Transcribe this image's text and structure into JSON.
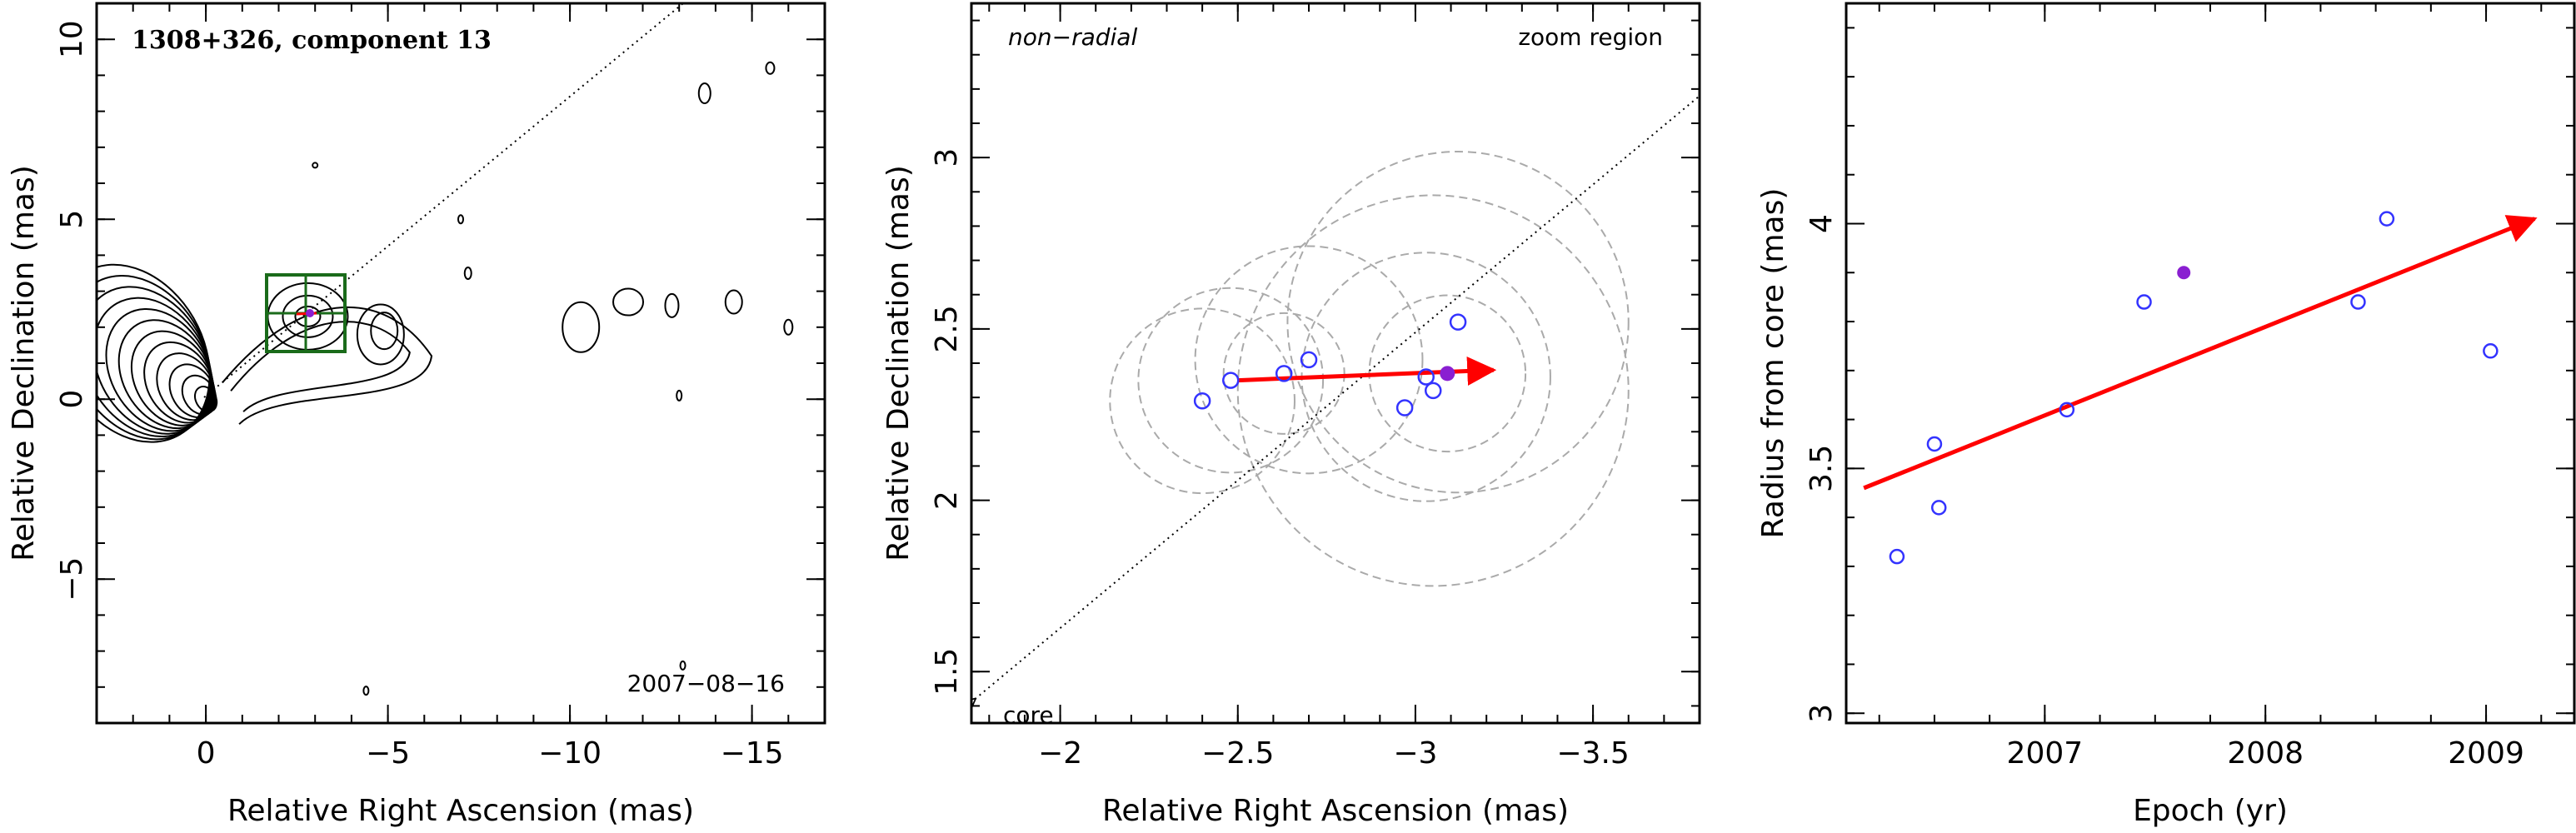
{
  "panels": [
    {
      "title": "1308+326, component 13",
      "date": "2007−08−16",
      "xlabel": "Relative Right Ascension (mas)",
      "ylabel": "Relative Declination (mas)",
      "xticks": [
        "0",
        "−5",
        "−10",
        "−15"
      ],
      "yticks": [
        "10",
        "5",
        "0",
        "−5"
      ]
    },
    {
      "label_left": "non−radial",
      "label_right": "zoom region",
      "core_label": "core",
      "xlabel": "Relative Right Ascension (mas)",
      "ylabel": "Relative Declination (mas)",
      "xticks": [
        "−2",
        "−2.5",
        "−3",
        "−3.5"
      ],
      "yticks": [
        "1.5",
        "2",
        "2.5",
        "3"
      ]
    },
    {
      "xlabel": "Epoch (yr)",
      "ylabel": "Radius from core (mas)",
      "xticks": [
        "2007",
        "2008",
        "2009"
      ],
      "yticks": [
        "3",
        "3.5",
        "4"
      ]
    }
  ],
  "chart_data": [
    {
      "type": "scatter",
      "title": "1308+326, component 13",
      "annotation": "2007−08−16",
      "xlabel": "Relative Right Ascension (mas)",
      "ylabel": "Relative Declination (mas)",
      "xlim": [
        3,
        -17
      ],
      "ylim": [
        -9,
        11
      ],
      "grid": false,
      "description_elements": [
        "contour map",
        "zoom box",
        "motion vector",
        "radial direction line"
      ],
      "core": [
        0,
        0
      ],
      "component": [
        -2.9,
        2.35
      ],
      "colors": {
        "box": "#1a6b1a",
        "vector": "#ff0000",
        "filled_point": "#8a1fd1"
      }
    },
    {
      "type": "scatter",
      "label": "non−radial",
      "region": "zoom region",
      "xlabel": "Relative Right Ascension (mas)",
      "ylabel": "Relative Declination (mas)",
      "xlim": [
        -1.75,
        -3.8
      ],
      "ylim": [
        1.35,
        3.45
      ],
      "grid": false,
      "points_open": [
        {
          "x": -2.4,
          "y": 2.29
        },
        {
          "x": -2.48,
          "y": 2.35
        },
        {
          "x": -2.63,
          "y": 2.37
        },
        {
          "x": -2.7,
          "y": 2.41
        },
        {
          "x": -2.97,
          "y": 2.27
        },
        {
          "x": -3.03,
          "y": 2.36
        },
        {
          "x": -3.05,
          "y": 2.32
        },
        {
          "x": -3.12,
          "y": 2.52
        }
      ],
      "points_filled": [
        {
          "x": -3.09,
          "y": 2.37
        }
      ],
      "error_circles": [
        {
          "x": -2.4,
          "y": 2.29,
          "r": 0.26
        },
        {
          "x": -2.48,
          "y": 2.35,
          "r": 0.26
        },
        {
          "x": -2.63,
          "y": 2.37,
          "r": 0.17
        },
        {
          "x": -2.7,
          "y": 2.41,
          "r": 0.32
        },
        {
          "x": -3.03,
          "y": 2.36,
          "r": 0.35
        },
        {
          "x": -3.12,
          "y": 2.52,
          "r": 0.48
        },
        {
          "x": -3.05,
          "y": 2.32,
          "r": 0.55
        },
        {
          "x": -3.09,
          "y": 2.37,
          "r": 0.22
        }
      ],
      "vector": {
        "x0": -2.5,
        "y0": 2.35,
        "x1": -3.22,
        "y1": 2.38
      },
      "radial_line": {
        "x0": -1.76,
        "y0": 1.42,
        "x1": -3.8,
        "y1": 3.18
      },
      "colors": {
        "points": "#3333ff",
        "filled": "#8a1fd1",
        "vector": "#ff0000",
        "circles": "#aaaaaa"
      }
    },
    {
      "type": "scatter",
      "xlabel": "Epoch (yr)",
      "ylabel": "Radius from core (mas)",
      "xlim": [
        2006.1,
        2009.4
      ],
      "ylim": [
        2.98,
        4.45
      ],
      "grid": false,
      "points_open": [
        {
          "x": 2006.33,
          "y": 3.32
        },
        {
          "x": 2006.5,
          "y": 3.55
        },
        {
          "x": 2006.52,
          "y": 3.42
        },
        {
          "x": 2007.1,
          "y": 3.62
        },
        {
          "x": 2007.45,
          "y": 3.84
        },
        {
          "x": 2008.42,
          "y": 3.84
        },
        {
          "x": 2008.55,
          "y": 4.01
        },
        {
          "x": 2009.02,
          "y": 3.74
        }
      ],
      "points_filled": [
        {
          "x": 2007.63,
          "y": 3.9
        }
      ],
      "fit_line": {
        "x0": 2006.18,
        "y0": 3.46,
        "x1": 2009.22,
        "y1": 4.01
      },
      "colors": {
        "points": "#3333ff",
        "filled": "#8a1fd1",
        "fit": "#ff0000"
      }
    }
  ]
}
